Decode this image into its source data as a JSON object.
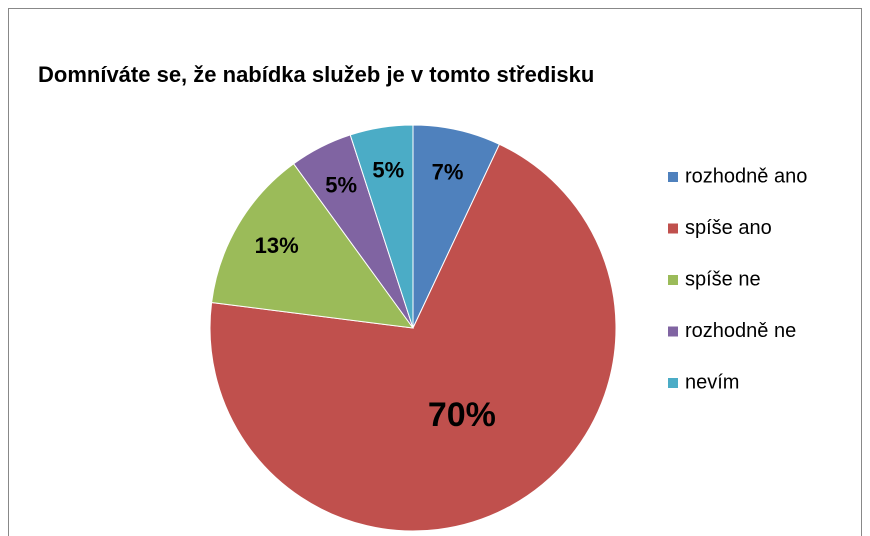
{
  "chart_data": {
    "type": "pie",
    "title": "Domníváte se, že nabídka služeb je v tomto středisku",
    "categories": [
      "rozhodně ano",
      "spíše ano",
      "spíše ne",
      "rozhodně ne",
      "nevím"
    ],
    "values": [
      7,
      70,
      13,
      5,
      5
    ],
    "value_labels": [
      "7%",
      "70%",
      "13%",
      "5%",
      "5%"
    ],
    "colors": [
      "#4f81bd",
      "#c0504d",
      "#9bbb59",
      "#8064a2",
      "#4bacc6"
    ],
    "legend": "right"
  }
}
